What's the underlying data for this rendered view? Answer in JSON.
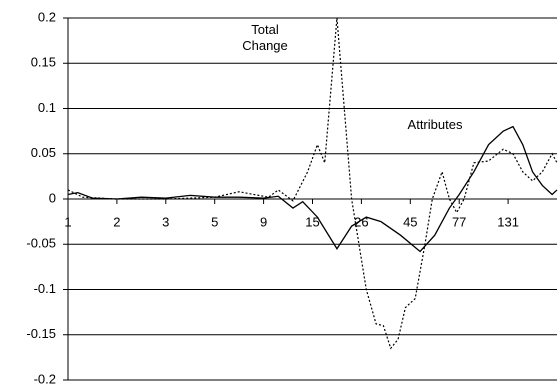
{
  "chart_data": {
    "type": "line",
    "xlim": [
      0,
      10
    ],
    "xticks": [
      {
        "value": 0,
        "label": "1"
      },
      {
        "value": 1,
        "label": "2"
      },
      {
        "value": 2,
        "label": "3"
      },
      {
        "value": 3,
        "label": "5"
      },
      {
        "value": 4,
        "label": "9"
      },
      {
        "value": 5,
        "label": "15"
      },
      {
        "value": 6,
        "label": "26"
      },
      {
        "value": 7,
        "label": "45"
      },
      {
        "value": 8,
        "label": "77"
      },
      {
        "value": 9,
        "label": "131"
      }
    ],
    "ylim": [
      -0.2,
      0.2
    ],
    "yticks": [
      -0.2,
      -0.15,
      -0.1,
      -0.05,
      0,
      0.05,
      0.1,
      0.15,
      0.2
    ],
    "grid": true,
    "series": [
      {
        "name": "Total Change",
        "color": "#000000",
        "dash": "dotted",
        "x": [
          0,
          0.3,
          1,
          2,
          3,
          3.5,
          3.8,
          4.1,
          4.3,
          4.6,
          4.9,
          5.1,
          5.25,
          5.5,
          5.65,
          5.8,
          5.95,
          6.1,
          6.3,
          6.45,
          6.6,
          6.75,
          6.9,
          7.1,
          7.3,
          7.45,
          7.65,
          7.8,
          7.95,
          8.1,
          8.3,
          8.6,
          8.9,
          9.1,
          9.3,
          9.5,
          9.7,
          9.9,
          10
        ],
        "values": [
          0.01,
          0.002,
          0,
          0,
          0.002,
          0.008,
          0.005,
          0.002,
          0.01,
          -0.002,
          0.03,
          0.06,
          0.04,
          0.2,
          0.1,
          0,
          -0.05,
          -0.1,
          -0.138,
          -0.14,
          -0.165,
          -0.155,
          -0.12,
          -0.11,
          -0.05,
          0,
          0.03,
          0,
          -0.015,
          0,
          0.04,
          0.042,
          0.055,
          0.05,
          0.03,
          0.02,
          0.03,
          0.05,
          0.04
        ]
      },
      {
        "name": "Attributes",
        "color": "#000000",
        "dash": "solid",
        "x": [
          0,
          0.2,
          0.5,
          1,
          1.5,
          2,
          2.5,
          3,
          3.5,
          4,
          4.3,
          4.6,
          4.8,
          5.1,
          5.5,
          5.8,
          6.1,
          6.4,
          6.8,
          7.2,
          7.5,
          7.8,
          8,
          8.3,
          8.6,
          8.9,
          9.1,
          9.3,
          9.5,
          9.7,
          9.9,
          10
        ],
        "values": [
          0.005,
          0.007,
          0.001,
          0,
          0.002,
          0.001,
          0.004,
          0.002,
          0.002,
          0.001,
          0.003,
          -0.01,
          -0.003,
          -0.02,
          -0.055,
          -0.03,
          -0.02,
          -0.025,
          -0.04,
          -0.058,
          -0.04,
          -0.01,
          0.005,
          0.03,
          0.06,
          0.075,
          0.08,
          0.06,
          0.03,
          0.015,
          0.005,
          0.01
        ]
      }
    ]
  }
}
